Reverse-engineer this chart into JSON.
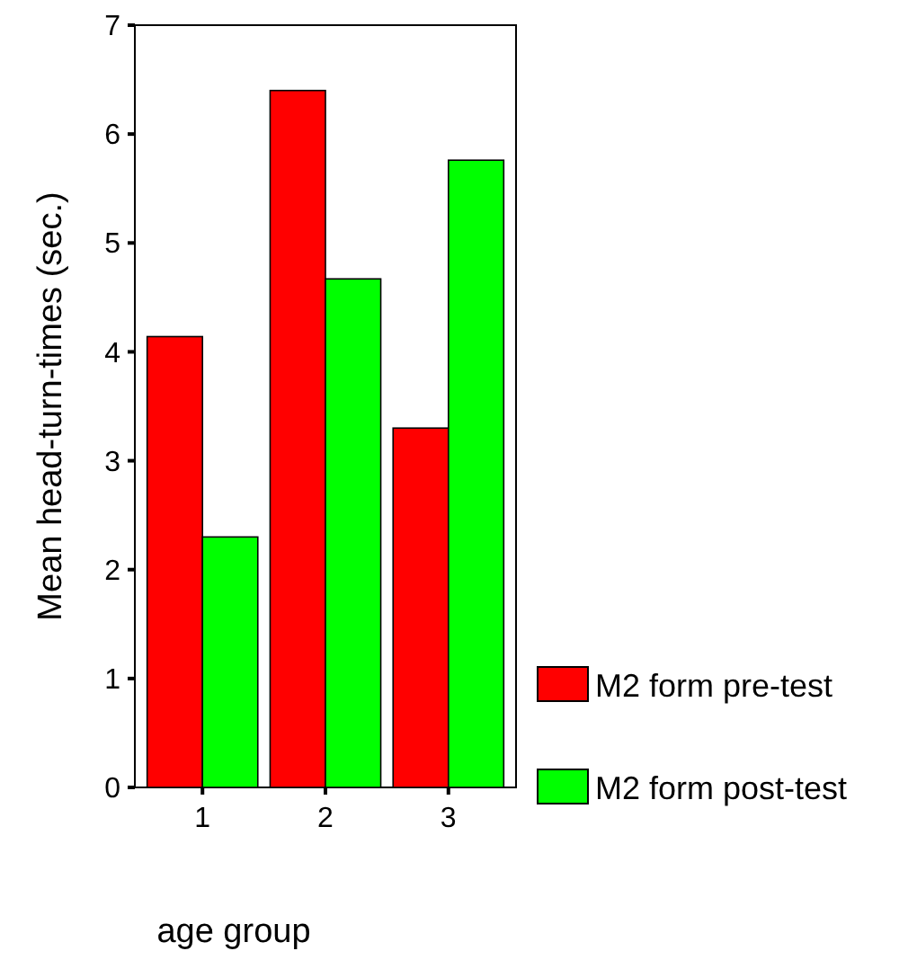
{
  "chart_data": {
    "type": "bar",
    "xlabel": "age group",
    "ylabel": "Mean head-turn-times (sec.)",
    "categories": [
      "1",
      "2",
      "3"
    ],
    "series": [
      {
        "name": "M2 form pre-test",
        "color": "#ff0000",
        "values": [
          4.14,
          6.4,
          3.3
        ]
      },
      {
        "name": "M2 form post-test",
        "color": "#00ff00",
        "values": [
          2.3,
          4.67,
          5.76
        ]
      }
    ],
    "ylim": [
      0,
      7
    ],
    "yticks": [
      0,
      1,
      2,
      3,
      4,
      5,
      6,
      7
    ],
    "grid": false,
    "legend": "bottom right"
  }
}
